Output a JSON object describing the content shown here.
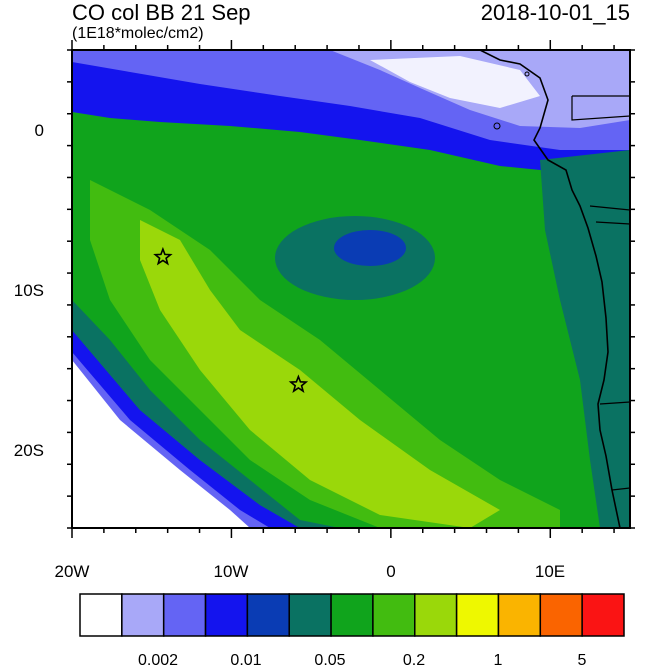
{
  "title_left": "CO col BB 21 Sep",
  "title_right": "2018-10-01_15",
  "subtitle": "(1E18*molec/cm2)",
  "lat_labels": [
    "0",
    "10S",
    "20S"
  ],
  "lon_labels": [
    "20W",
    "10W",
    "0",
    "10E"
  ],
  "colorbar": {
    "colors": [
      "#ffffff",
      "#a8a8f8",
      "#6464f4",
      "#1414ee",
      "#0a3cb4",
      "#0a7262",
      "#10a41c",
      "#42bc10",
      "#9ad80a",
      "#eef800",
      "#fab400",
      "#fa6400",
      "#fa1414"
    ],
    "labels": [
      "0.002",
      "0.01",
      "0.05",
      "0.2",
      "1",
      "5"
    ]
  },
  "markers": [
    {
      "name": "star-marker-1",
      "lon": -14.3,
      "lat": -8.0
    },
    {
      "name": "star-marker-2",
      "lon": -5.8,
      "lat": -16.0
    }
  ]
}
